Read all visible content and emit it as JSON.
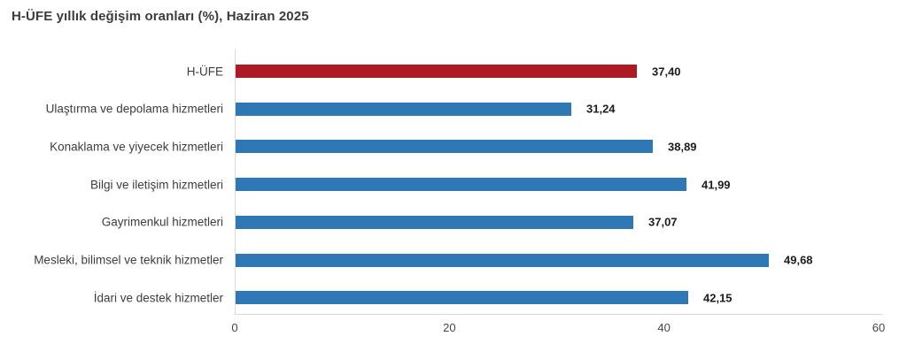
{
  "chart_data": {
    "type": "bar",
    "orientation": "horizontal",
    "title": "H-ÜFE yıllık değişim oranları (%), Haziran 2025",
    "categories": [
      "H-ÜFE",
      "Ulaştırma ve depolama hizmetleri",
      "Konaklama ve yiyecek hizmetleri",
      "Bilgi ve iletişim hizmetleri",
      "Gayrimenkul hizmetleri",
      "Mesleki, bilimsel ve teknik hizmetler",
      "İdari ve destek hizmetler"
    ],
    "values": [
      37.4,
      31.24,
      38.89,
      41.99,
      37.07,
      49.68,
      42.15
    ],
    "value_labels": [
      "37,40",
      "31,24",
      "38,89",
      "41,99",
      "37,07",
      "49,68",
      "42,15"
    ],
    "highlight_index": 0,
    "colors": {
      "highlight": "#ae1a24",
      "default": "#2e79b5",
      "axis_line": "#d9d9d9",
      "title_text": "#3c3c3c",
      "category_text": "#3d3d3d",
      "value_text": "#1c1c1c",
      "tick_text": "#464646"
    },
    "xlim": [
      0,
      60
    ],
    "xticks": [
      0,
      20,
      40,
      60
    ],
    "xtick_labels": [
      "0",
      "20",
      "40",
      "60"
    ],
    "grid": false,
    "legend": null,
    "xlabel": "",
    "ylabel": ""
  }
}
